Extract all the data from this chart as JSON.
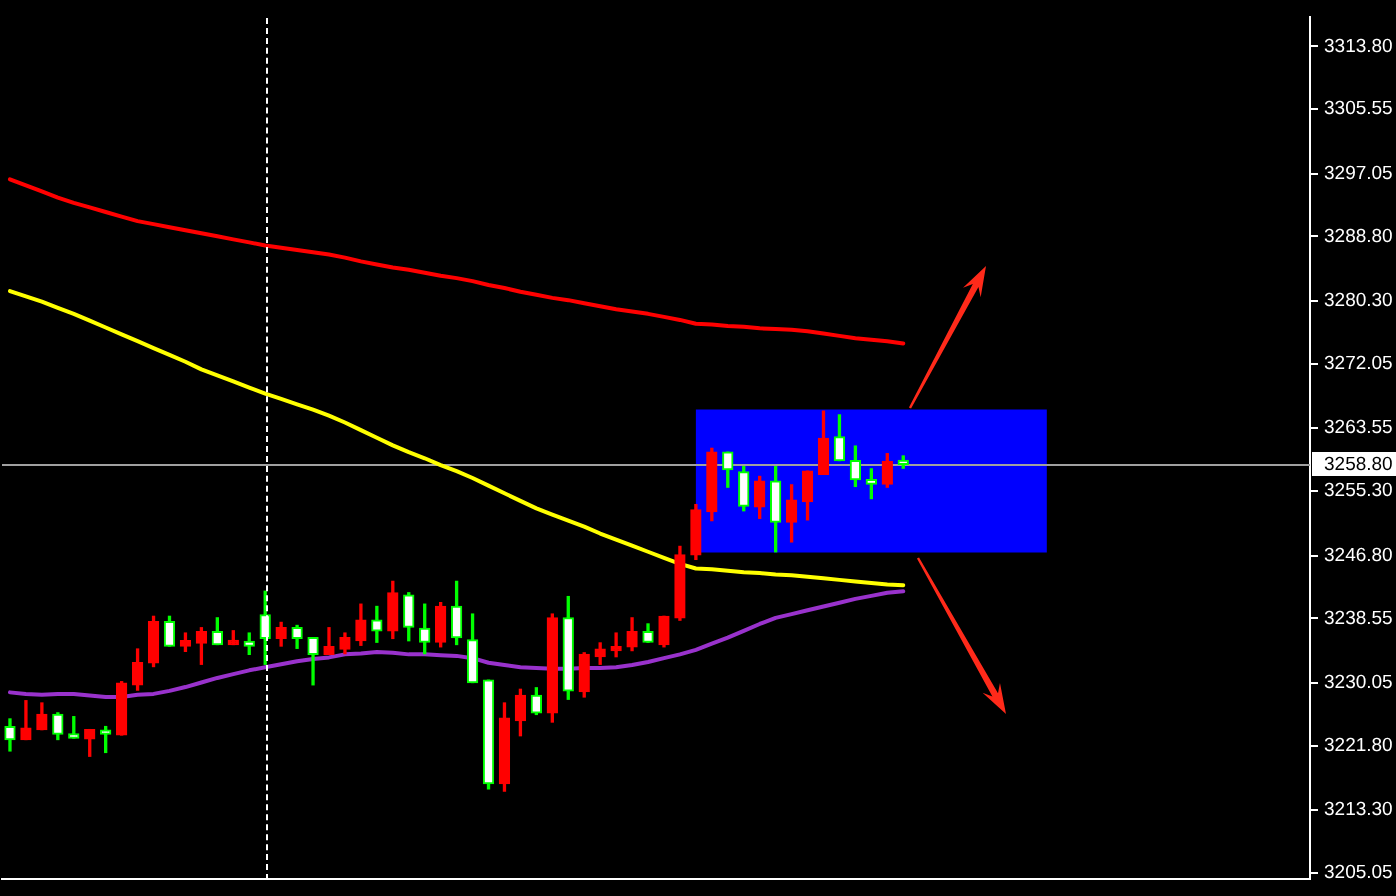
{
  "chart_data": {
    "type": "candlestick",
    "categories": [
      null,
      null,
      null,
      null,
      null,
      null,
      null,
      null,
      null,
      null,
      null,
      null,
      null,
      null,
      null,
      null,
      null,
      null,
      null,
      null,
      null,
      null,
      null,
      null,
      null,
      null,
      null,
      null,
      null,
      null,
      null,
      null,
      null,
      null,
      null,
      null,
      null,
      null,
      null,
      null,
      null,
      null,
      null,
      null,
      null,
      null,
      null,
      null,
      null,
      null,
      null,
      null,
      null,
      null,
      null,
      null,
      null,
      null,
      null,
      null,
      null,
      null,
      null,
      null,
      null,
      null,
      null,
      null,
      null,
      null,
      null,
      null,
      null,
      null,
      null,
      null,
      null,
      null,
      null,
      null,
      null,
      null
    ],
    "ohlc": [
      [
        3224.3,
        3225.3,
        3221.1,
        3222.6
      ],
      [
        3222.6,
        3227.7,
        3222.6,
        3224.1
      ],
      [
        3223.9,
        3227.4,
        3223.9,
        3225.9
      ],
      [
        3225.9,
        3226.1,
        3222.6,
        3223.3
      ],
      [
        3223.3,
        3225.6,
        3222.8,
        3222.8
      ],
      [
        3222.7,
        3223.9,
        3220.4,
        3223.9
      ],
      [
        3223.6,
        3224.3,
        3220.9,
        3223.3
      ],
      [
        3223.2,
        3230.2,
        3223.2,
        3230.0
      ],
      [
        3229.8,
        3234.5,
        3229.1,
        3232.7
      ],
      [
        3232.7,
        3238.8,
        3232.2,
        3238.1
      ],
      [
        3238.1,
        3238.8,
        3234.9,
        3234.9
      ],
      [
        3234.9,
        3236.6,
        3234.2,
        3235.6
      ],
      [
        3235.3,
        3237.3,
        3232.5,
        3236.8
      ],
      [
        3236.8,
        3238.6,
        3235.1,
        3235.1
      ],
      [
        3235.1,
        3236.9,
        3235.1,
        3235.5
      ],
      [
        3235.5,
        3236.6,
        3233.8,
        3234.9
      ],
      [
        3239.0,
        3242.1,
        3232.5,
        3235.9
      ],
      [
        3235.9,
        3238.0,
        3234.9,
        3237.3
      ],
      [
        3237.3,
        3237.6,
        3234.6,
        3235.9
      ],
      [
        3236.0,
        3236.0,
        3229.8,
        3233.8
      ],
      [
        3233.8,
        3237.3,
        3233.8,
        3234.8
      ],
      [
        3234.5,
        3236.6,
        3233.9,
        3236.0
      ],
      [
        3235.6,
        3240.4,
        3235.0,
        3238.3
      ],
      [
        3238.3,
        3240.1,
        3235.4,
        3236.9
      ],
      [
        3236.9,
        3243.4,
        3235.9,
        3241.9
      ],
      [
        3241.6,
        3241.9,
        3235.6,
        3237.4
      ],
      [
        3237.2,
        3240.4,
        3233.9,
        3235.4
      ],
      [
        3235.4,
        3240.6,
        3234.8,
        3240.1
      ],
      [
        3240.1,
        3243.4,
        3235.1,
        3236.0
      ],
      [
        3235.7,
        3239.1,
        3230.1,
        3230.1
      ],
      [
        3230.4,
        3230.4,
        3216.1,
        3216.8
      ],
      [
        3216.8,
        3227.4,
        3215.8,
        3225.4
      ],
      [
        3225.1,
        3229.2,
        3223.1,
        3228.4
      ],
      [
        3228.4,
        3229.4,
        3225.9,
        3226.1
      ],
      [
        3226.1,
        3239.1,
        3224.9,
        3238.6
      ],
      [
        3238.6,
        3241.4,
        3227.9,
        3229.0
      ],
      [
        3228.9,
        3234.0,
        3228.2,
        3233.8
      ],
      [
        3233.5,
        3235.3,
        3232.5,
        3234.5
      ],
      [
        3234.3,
        3236.6,
        3233.5,
        3234.8
      ],
      [
        3234.8,
        3238.6,
        3234.3,
        3236.8
      ],
      [
        3236.8,
        3237.8,
        3235.4,
        3235.4
      ],
      [
        3235.1,
        3238.8,
        3234.8,
        3238.8
      ],
      [
        3238.6,
        3248.0,
        3238.3,
        3246.9
      ],
      [
        3246.9,
        3253.5,
        3246.3,
        3252.8
      ],
      [
        3252.6,
        3260.9,
        3251.4,
        3260.4
      ],
      [
        3260.4,
        3260.4,
        3255.8,
        3258.1
      ],
      [
        3257.8,
        3258.5,
        3252.7,
        3253.3
      ],
      [
        3253.2,
        3257.2,
        3251.7,
        3256.6
      ],
      [
        3256.6,
        3258.5,
        3247.3,
        3251.2
      ],
      [
        3251.2,
        3256.1,
        3248.6,
        3254.1
      ],
      [
        3253.9,
        3257.9,
        3251.5,
        3257.9
      ],
      [
        3257.5,
        3265.8,
        3257.5,
        3262.2
      ],
      [
        3262.4,
        3265.3,
        3259.3,
        3259.3
      ],
      [
        3259.3,
        3261.2,
        3255.9,
        3256.8
      ],
      [
        3256.8,
        3258.2,
        3254.3,
        3256.2
      ],
      [
        3256.2,
        3260.2,
        3255.8,
        3259.2
      ],
      [
        3259.3,
        3259.9,
        3258.3,
        3258.8
      ],
      null,
      null,
      null,
      null,
      null,
      null,
      null,
      null,
      null,
      null,
      null,
      null,
      null,
      null,
      null,
      null,
      null,
      null,
      null,
      null,
      null,
      null,
      null,
      null,
      null
    ],
    "colors": [
      "#00ff00",
      "#ff0000",
      "#ff0000",
      "#00ff00",
      "#00ff00",
      "#ff0000",
      "#00ff00",
      "#ff0000",
      "#ff0000",
      "#ff0000",
      "#00ff00",
      "#ff0000",
      "#ff0000",
      "#00ff00",
      "#ff0000",
      "#00ff00",
      "#00ff00",
      "#ff0000",
      "#00ff00",
      "#00ff00",
      "#ff0000",
      "#ff0000",
      "#ff0000",
      "#00ff00",
      "#ff0000",
      "#00ff00",
      "#00ff00",
      "#ff0000",
      "#00ff00",
      "#00ff00",
      "#00ff00",
      "#ff0000",
      "#ff0000",
      "#00ff00",
      "#ff0000",
      "#00ff00",
      "#ff0000",
      "#ff0000",
      "#ff0000",
      "#ff0000",
      "#00ff00",
      "#ff0000",
      "#ff0000",
      "#ff0000",
      "#ff0000",
      "#00ff00",
      "#00ff00",
      "#ff0000",
      "#00ff00",
      "#ff0000",
      "#ff0000",
      "#ff0000",
      "#00ff00",
      "#00ff00",
      "#00ff00",
      "#ff0000",
      "#00ff00",
      null,
      null,
      null,
      null,
      null,
      null,
      null,
      null,
      null,
      null,
      null,
      null,
      null,
      null,
      null,
      null,
      null,
      null,
      null,
      null,
      null,
      null,
      null,
      null,
      null
    ],
    "series": [
      {
        "type": "line",
        "color": "#ff0000",
        "values": [
          3296.3,
          3295.5,
          3294.7,
          3293.9,
          3293.2,
          3292.6,
          3292.0,
          3291.4,
          3290.8,
          3290.4,
          3290.0,
          3289.6,
          3289.2,
          3288.8,
          3288.4,
          3288.0,
          3287.6,
          3287.3,
          3287.0,
          3286.7,
          3286.4,
          3286.0,
          3285.5,
          3285.1,
          3284.7,
          3284.4,
          3284.0,
          3283.6,
          3283.3,
          3282.9,
          3282.4,
          3282.0,
          3281.5,
          3281.1,
          3280.7,
          3280.4,
          3280.0,
          3279.6,
          3279.2,
          3278.9,
          3278.6,
          3278.2,
          3277.8,
          3277.3,
          3277.2,
          3277.0,
          3276.9,
          3276.7,
          3276.6,
          3276.5,
          3276.3,
          3276.0,
          3275.7,
          3275.4,
          3275.2,
          3275.0,
          3274.7,
          null,
          null,
          null,
          null,
          null,
          null,
          null,
          null,
          null,
          null,
          null,
          null,
          null,
          null,
          null,
          null,
          null,
          null,
          null,
          null,
          null,
          null,
          null,
          null,
          null
        ]
      },
      {
        "type": "line",
        "color": "#ffff00",
        "values": [
          3281.6,
          3280.9,
          3280.2,
          3279.4,
          3278.6,
          3277.7,
          3276.8,
          3275.9,
          3275.0,
          3274.1,
          3273.2,
          3272.3,
          3271.3,
          3270.5,
          3269.7,
          3268.9,
          3268.1,
          3267.4,
          3266.7,
          3266.0,
          3265.2,
          3264.3,
          3263.3,
          3262.3,
          3261.3,
          3260.4,
          3259.6,
          3258.7,
          3257.9,
          3257.0,
          3256.0,
          3255.0,
          3254.0,
          3253.0,
          3252.2,
          3251.4,
          3250.6,
          3249.7,
          3248.9,
          3248.1,
          3247.3,
          3246.5,
          3245.7,
          3245.1,
          3245.0,
          3244.8,
          3244.6,
          3244.5,
          3244.3,
          3244.2,
          3244.0,
          3243.8,
          3243.6,
          3243.4,
          3243.2,
          3243.0,
          3242.9,
          null,
          null,
          null,
          null,
          null,
          null,
          null,
          null,
          null,
          null,
          null,
          null,
          null,
          null,
          null,
          null,
          null,
          null,
          null,
          null,
          null,
          null,
          null,
          null,
          null
        ]
      },
      {
        "type": "line",
        "color": "#9932cc",
        "values": [
          3228.8,
          3228.6,
          3228.5,
          3228.6,
          3228.6,
          3228.4,
          3228.2,
          3228.2,
          3228.5,
          3228.6,
          3229.0,
          3229.5,
          3230.1,
          3230.7,
          3231.2,
          3231.7,
          3232.1,
          3232.5,
          3232.9,
          3233.2,
          3233.4,
          3233.8,
          3233.9,
          3234.1,
          3234.0,
          3233.8,
          3233.8,
          3233.7,
          3233.6,
          3233.3,
          3232.7,
          3232.4,
          3232.1,
          3232.0,
          3231.9,
          3231.9,
          3232.0,
          3232.0,
          3232.1,
          3232.4,
          3232.8,
          3233.3,
          3233.8,
          3234.4,
          3235.2,
          3236.0,
          3236.9,
          3237.8,
          3238.6,
          3239.1,
          3239.6,
          3240.1,
          3240.6,
          3241.1,
          3241.5,
          3241.9,
          3242.1,
          null,
          null,
          null,
          null,
          null,
          null,
          null,
          null,
          null,
          null,
          null,
          null,
          null,
          null,
          null,
          null,
          null,
          null,
          null,
          null,
          null,
          null,
          null,
          null,
          null
        ]
      }
    ],
    "ylim": [
      3204.3,
      3317.6
    ],
    "yticks": [
      3205.05,
      {
        "value": 3213.3,
        "label": "3213.30"
      },
      {
        "value": 3221.8,
        "label": "3221.80"
      },
      3230.05,
      3238.55,
      {
        "value": 3246.8,
        "label": "3246.80"
      },
      {
        "value": 3255.3,
        "label": "3255.30"
      },
      3263.55,
      3272.05,
      {
        "value": 3280.3,
        "label": "3280.30"
      },
      {
        "value": 3288.8,
        "label": "3288.80"
      },
      3297.05,
      3305.55,
      {
        "value": 3313.8,
        "label": "3313.80"
      }
    ],
    "tick_labels": "y",
    "ref_lines": [
      {
        "axis": "y",
        "value": 3258.8,
        "label": "3258.80",
        "color": "#a0a0a0",
        "line_style": "solid"
      }
    ],
    "bands": [
      {
        "axis": "y",
        "from": 3247.2,
        "to": 3266.0,
        "color": "#0000ff"
      }
    ]
  }
}
